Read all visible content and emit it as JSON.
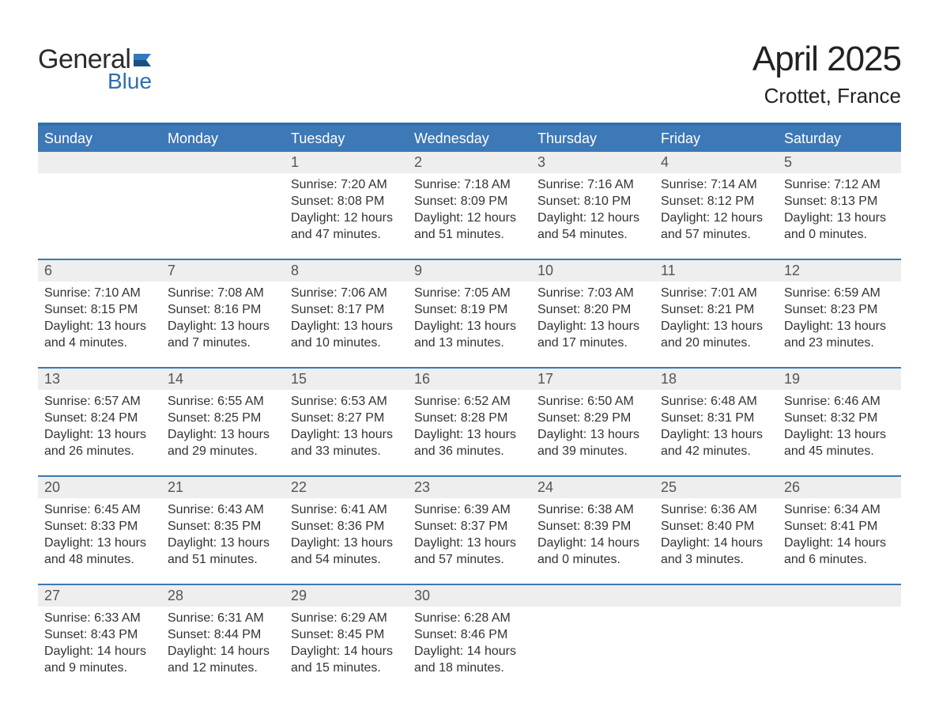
{
  "logo": {
    "general": "General",
    "blue": "Blue",
    "flag_color": "#2f7bbf"
  },
  "title": {
    "month": "April 2025",
    "location": "Crottet, France"
  },
  "colors": {
    "header_bar": "#3d78b7",
    "header_border_top": "#2f6fb1",
    "week_separator": "#3d78b7",
    "daynum_bg": "#eeeeee",
    "text": "#2b2b2b",
    "weekday_text": "#ffffff"
  },
  "weekdays": [
    "Sunday",
    "Monday",
    "Tuesday",
    "Wednesday",
    "Thursday",
    "Friday",
    "Saturday"
  ],
  "weeks": [
    {
      "days": [
        {
          "num": "",
          "lines": [
            "",
            "",
            "",
            ""
          ]
        },
        {
          "num": "",
          "lines": [
            "",
            "",
            "",
            ""
          ]
        },
        {
          "num": "1",
          "lines": [
            "Sunrise: 7:20 AM",
            "Sunset: 8:08 PM",
            "Daylight: 12 hours",
            "and 47 minutes."
          ]
        },
        {
          "num": "2",
          "lines": [
            "Sunrise: 7:18 AM",
            "Sunset: 8:09 PM",
            "Daylight: 12 hours",
            "and 51 minutes."
          ]
        },
        {
          "num": "3",
          "lines": [
            "Sunrise: 7:16 AM",
            "Sunset: 8:10 PM",
            "Daylight: 12 hours",
            "and 54 minutes."
          ]
        },
        {
          "num": "4",
          "lines": [
            "Sunrise: 7:14 AM",
            "Sunset: 8:12 PM",
            "Daylight: 12 hours",
            "and 57 minutes."
          ]
        },
        {
          "num": "5",
          "lines": [
            "Sunrise: 7:12 AM",
            "Sunset: 8:13 PM",
            "Daylight: 13 hours",
            "and 0 minutes."
          ]
        }
      ]
    },
    {
      "days": [
        {
          "num": "6",
          "lines": [
            "Sunrise: 7:10 AM",
            "Sunset: 8:15 PM",
            "Daylight: 13 hours",
            "and 4 minutes."
          ]
        },
        {
          "num": "7",
          "lines": [
            "Sunrise: 7:08 AM",
            "Sunset: 8:16 PM",
            "Daylight: 13 hours",
            "and 7 minutes."
          ]
        },
        {
          "num": "8",
          "lines": [
            "Sunrise: 7:06 AM",
            "Sunset: 8:17 PM",
            "Daylight: 13 hours",
            "and 10 minutes."
          ]
        },
        {
          "num": "9",
          "lines": [
            "Sunrise: 7:05 AM",
            "Sunset: 8:19 PM",
            "Daylight: 13 hours",
            "and 13 minutes."
          ]
        },
        {
          "num": "10",
          "lines": [
            "Sunrise: 7:03 AM",
            "Sunset: 8:20 PM",
            "Daylight: 13 hours",
            "and 17 minutes."
          ]
        },
        {
          "num": "11",
          "lines": [
            "Sunrise: 7:01 AM",
            "Sunset: 8:21 PM",
            "Daylight: 13 hours",
            "and 20 minutes."
          ]
        },
        {
          "num": "12",
          "lines": [
            "Sunrise: 6:59 AM",
            "Sunset: 8:23 PM",
            "Daylight: 13 hours",
            "and 23 minutes."
          ]
        }
      ]
    },
    {
      "days": [
        {
          "num": "13",
          "lines": [
            "Sunrise: 6:57 AM",
            "Sunset: 8:24 PM",
            "Daylight: 13 hours",
            "and 26 minutes."
          ]
        },
        {
          "num": "14",
          "lines": [
            "Sunrise: 6:55 AM",
            "Sunset: 8:25 PM",
            "Daylight: 13 hours",
            "and 29 minutes."
          ]
        },
        {
          "num": "15",
          "lines": [
            "Sunrise: 6:53 AM",
            "Sunset: 8:27 PM",
            "Daylight: 13 hours",
            "and 33 minutes."
          ]
        },
        {
          "num": "16",
          "lines": [
            "Sunrise: 6:52 AM",
            "Sunset: 8:28 PM",
            "Daylight: 13 hours",
            "and 36 minutes."
          ]
        },
        {
          "num": "17",
          "lines": [
            "Sunrise: 6:50 AM",
            "Sunset: 8:29 PM",
            "Daylight: 13 hours",
            "and 39 minutes."
          ]
        },
        {
          "num": "18",
          "lines": [
            "Sunrise: 6:48 AM",
            "Sunset: 8:31 PM",
            "Daylight: 13 hours",
            "and 42 minutes."
          ]
        },
        {
          "num": "19",
          "lines": [
            "Sunrise: 6:46 AM",
            "Sunset: 8:32 PM",
            "Daylight: 13 hours",
            "and 45 minutes."
          ]
        }
      ]
    },
    {
      "days": [
        {
          "num": "20",
          "lines": [
            "Sunrise: 6:45 AM",
            "Sunset: 8:33 PM",
            "Daylight: 13 hours",
            "and 48 minutes."
          ]
        },
        {
          "num": "21",
          "lines": [
            "Sunrise: 6:43 AM",
            "Sunset: 8:35 PM",
            "Daylight: 13 hours",
            "and 51 minutes."
          ]
        },
        {
          "num": "22",
          "lines": [
            "Sunrise: 6:41 AM",
            "Sunset: 8:36 PM",
            "Daylight: 13 hours",
            "and 54 minutes."
          ]
        },
        {
          "num": "23",
          "lines": [
            "Sunrise: 6:39 AM",
            "Sunset: 8:37 PM",
            "Daylight: 13 hours",
            "and 57 minutes."
          ]
        },
        {
          "num": "24",
          "lines": [
            "Sunrise: 6:38 AM",
            "Sunset: 8:39 PM",
            "Daylight: 14 hours",
            "and 0 minutes."
          ]
        },
        {
          "num": "25",
          "lines": [
            "Sunrise: 6:36 AM",
            "Sunset: 8:40 PM",
            "Daylight: 14 hours",
            "and 3 minutes."
          ]
        },
        {
          "num": "26",
          "lines": [
            "Sunrise: 6:34 AM",
            "Sunset: 8:41 PM",
            "Daylight: 14 hours",
            "and 6 minutes."
          ]
        }
      ]
    },
    {
      "days": [
        {
          "num": "27",
          "lines": [
            "Sunrise: 6:33 AM",
            "Sunset: 8:43 PM",
            "Daylight: 14 hours",
            "and 9 minutes."
          ]
        },
        {
          "num": "28",
          "lines": [
            "Sunrise: 6:31 AM",
            "Sunset: 8:44 PM",
            "Daylight: 14 hours",
            "and 12 minutes."
          ]
        },
        {
          "num": "29",
          "lines": [
            "Sunrise: 6:29 AM",
            "Sunset: 8:45 PM",
            "Daylight: 14 hours",
            "and 15 minutes."
          ]
        },
        {
          "num": "30",
          "lines": [
            "Sunrise: 6:28 AM",
            "Sunset: 8:46 PM",
            "Daylight: 14 hours",
            "and 18 minutes."
          ]
        },
        {
          "num": "",
          "lines": [
            "",
            "",
            "",
            ""
          ]
        },
        {
          "num": "",
          "lines": [
            "",
            "",
            "",
            ""
          ]
        },
        {
          "num": "",
          "lines": [
            "",
            "",
            "",
            ""
          ]
        }
      ]
    }
  ]
}
